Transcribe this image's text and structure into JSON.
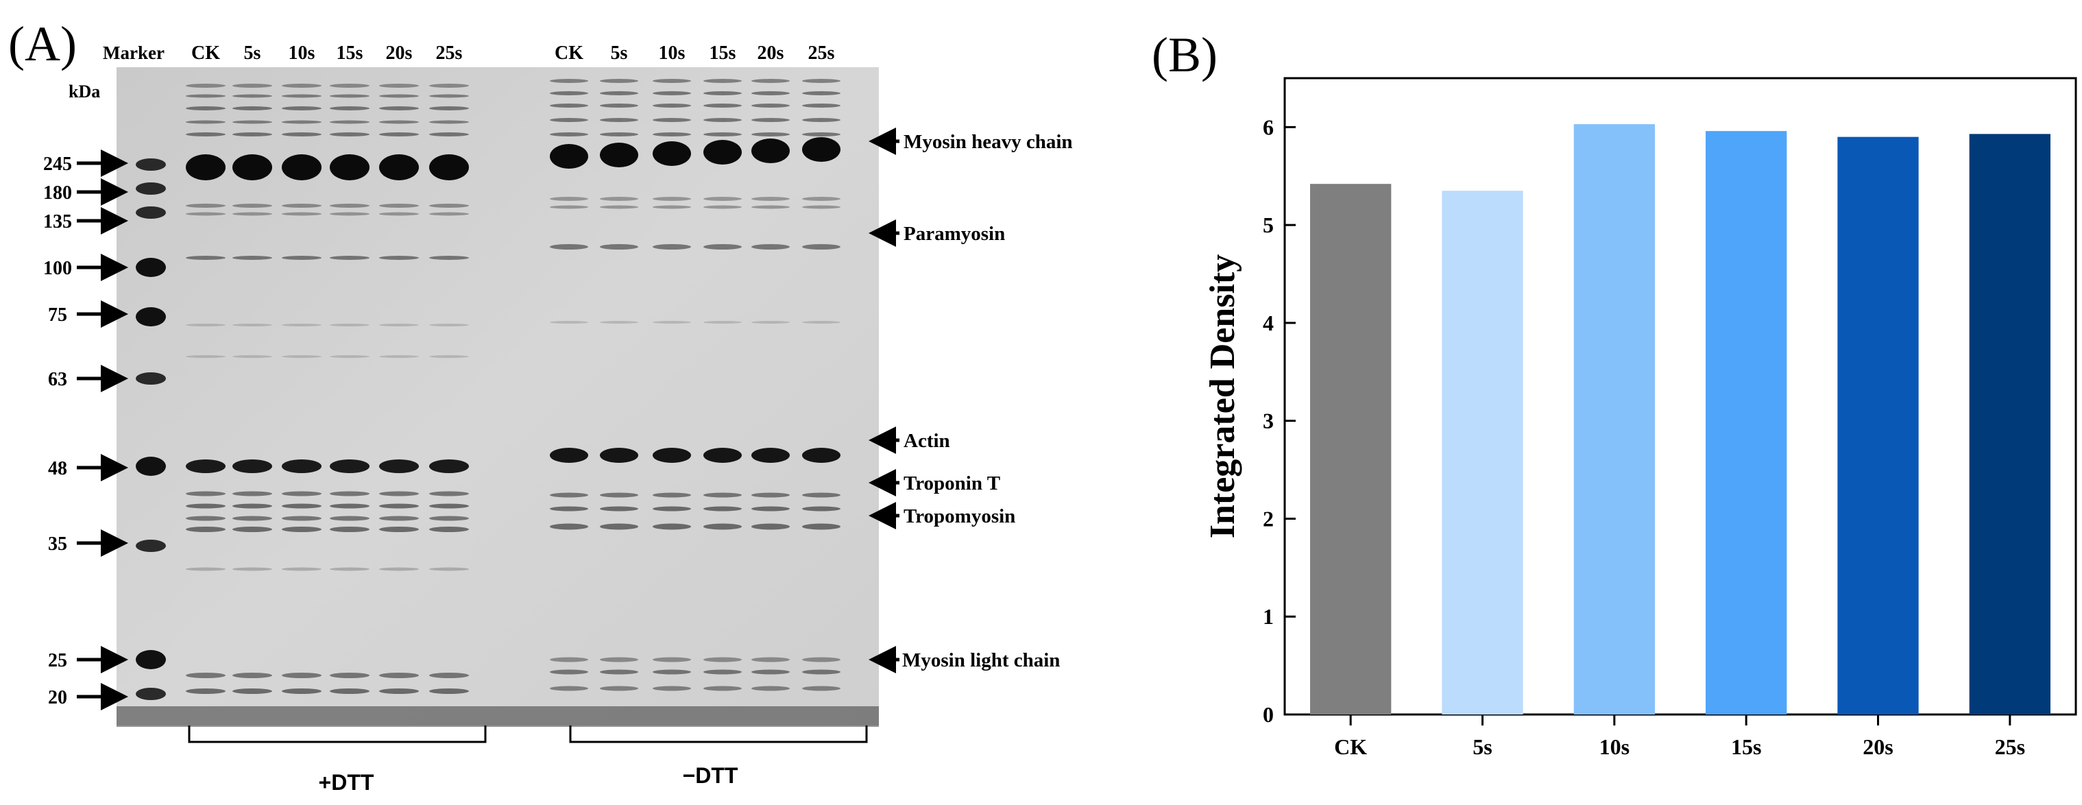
{
  "panelA": {
    "label": "(A)",
    "marker_label": "Marker",
    "kda_label": "kDa",
    "lanes_left": [
      "CK",
      "5s",
      "10s",
      "15s",
      "20s",
      "25s"
    ],
    "lanes_right": [
      "CK",
      "5s",
      "10s",
      "15s",
      "20s",
      "25s"
    ],
    "marker_sizes": [
      "245",
      "180",
      "135",
      "100",
      "75",
      "63",
      "48",
      "35",
      "25",
      "20"
    ],
    "band_labels": [
      "Myosin heavy chain",
      "Paramyosin",
      "Actin",
      "Troponin T",
      "Tropomyosin",
      "Myosin light chain"
    ],
    "group_left": "+DTT",
    "group_right": "−DTT"
  },
  "panelB": {
    "label": "(B)"
  },
  "chart_data": {
    "type": "bar",
    "categories": [
      "CK",
      "5s",
      "10s",
      "15s",
      "20s",
      "25s"
    ],
    "values": [
      5.42,
      5.35,
      6.03,
      5.96,
      5.9,
      5.93
    ],
    "colors": [
      "#7f7f7f",
      "#bcdcfd",
      "#84c1fb",
      "#4ea5fa",
      "#0a58b5",
      "#003a78"
    ],
    "title": "",
    "xlabel": "",
    "ylabel": "Integrated Density",
    "ylim": [
      0,
      6.5
    ],
    "yticks": [
      0,
      1,
      2,
      3,
      4,
      5,
      6
    ],
    "grid": false,
    "legend": "none"
  }
}
